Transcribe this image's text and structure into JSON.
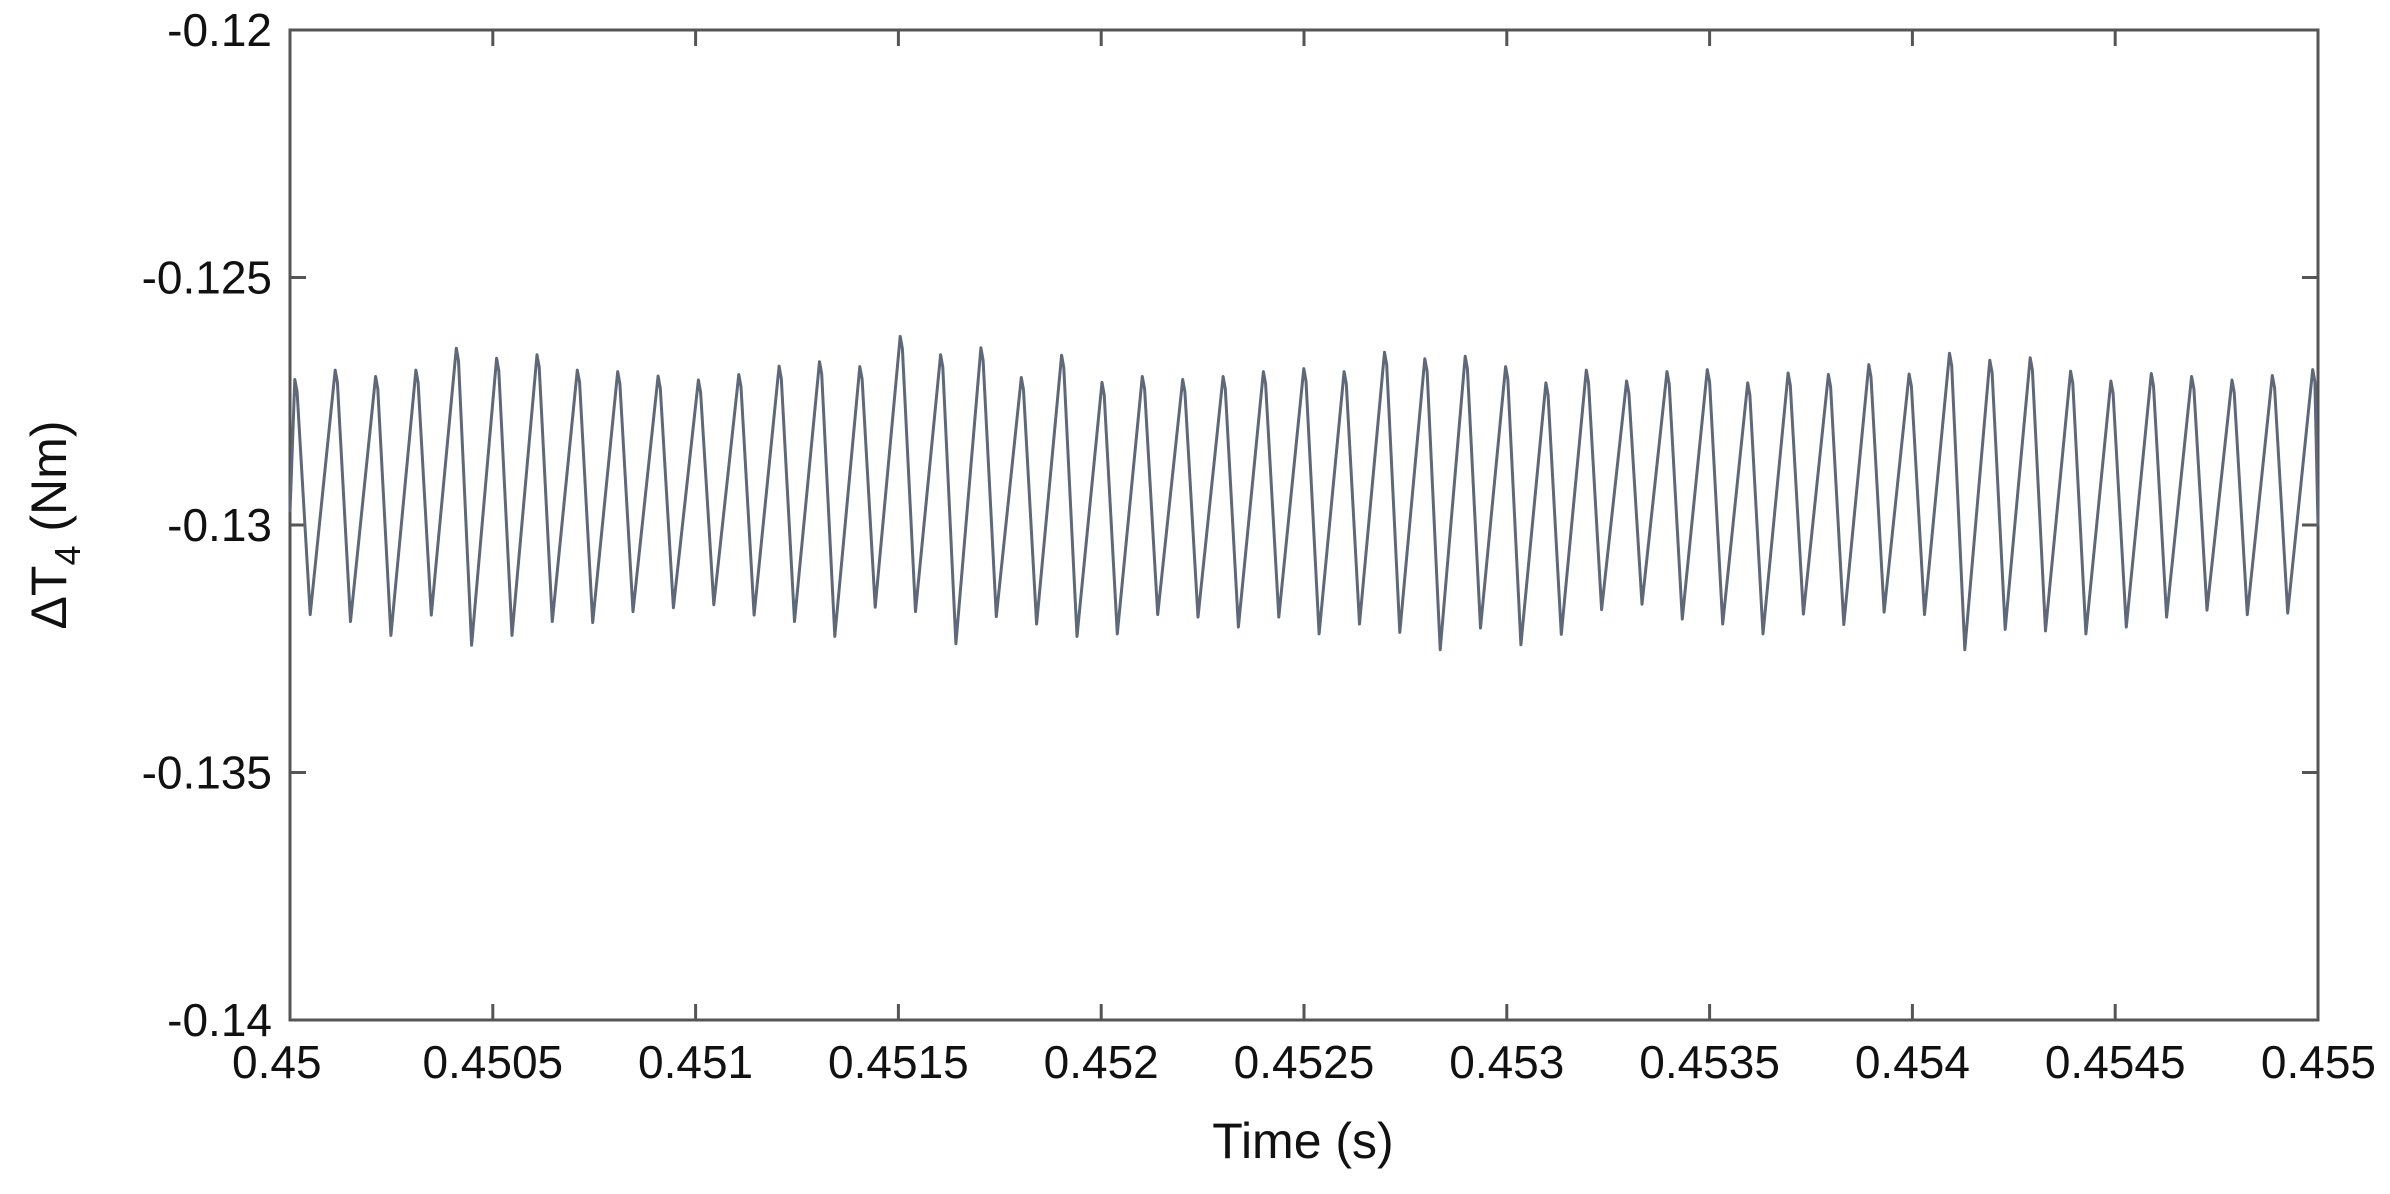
{
  "chart_data": {
    "type": "line",
    "xlabel": "Time (s)",
    "ylabel": {
      "prefix": "ΔT",
      "subscript": "4",
      "suffix": " (Nm)"
    },
    "xlim": [
      0.45,
      0.455
    ],
    "ylim": [
      -0.14,
      -0.12
    ],
    "x_ticks": [
      0.45,
      0.4505,
      0.451,
      0.4515,
      0.452,
      0.4525,
      0.453,
      0.4535,
      0.454,
      0.4545,
      0.455
    ],
    "x_tick_labels": [
      "0.45",
      "0.4505",
      "0.451",
      "0.4515",
      "0.452",
      "0.4525",
      "0.453",
      "0.4535",
      "0.454",
      "0.4545",
      "0.455"
    ],
    "y_ticks": [
      -0.14,
      -0.135,
      -0.13,
      -0.125,
      -0.12
    ],
    "y_tick_labels": [
      "-0.14",
      "-0.135",
      "-0.13",
      "-0.125",
      "-0.12"
    ],
    "grid": false,
    "line_color": "#5f6878",
    "series": [
      {
        "x_start": 0.45,
        "x_end": 0.455,
        "period": 9.95e-05,
        "peaks": [
          -0.12706,
          -0.12687,
          -0.127,
          -0.12687,
          -0.12643,
          -0.12663,
          -0.12656,
          -0.12687,
          -0.1269,
          -0.12699,
          -0.12707,
          -0.12696,
          -0.12679,
          -0.1267,
          -0.1268,
          -0.12619,
          -0.12656,
          -0.12642,
          -0.12702,
          -0.12657,
          -0.12712,
          -0.127,
          -0.12706,
          -0.127,
          -0.1269,
          -0.12684,
          -0.1269,
          -0.12651,
          -0.12664,
          -0.12659,
          -0.1268,
          -0.12713,
          -0.12687,
          -0.12709,
          -0.1269,
          -0.12686,
          -0.12713,
          -0.12693,
          -0.12696,
          -0.12676,
          -0.12695,
          -0.12653,
          -0.12667,
          -0.12662,
          -0.12689,
          -0.12709,
          -0.12694,
          -0.127,
          -0.12707,
          -0.12698,
          -0.12686,
          -0.12675,
          -0.12682,
          -0.12654,
          -0.12683,
          -0.1264,
          -0.12674,
          -0.12691,
          -0.12677,
          -0.12702
        ],
        "troughs": [
          -0.13181,
          -0.13195,
          -0.13223,
          -0.13182,
          -0.13243,
          -0.13223,
          -0.13195,
          -0.13197,
          -0.13175,
          -0.13167,
          -0.13161,
          -0.13182,
          -0.13195,
          -0.13225,
          -0.13166,
          -0.13175,
          -0.1324,
          -0.13185,
          -0.132,
          -0.13225,
          -0.1322,
          -0.13181,
          -0.13186,
          -0.13206,
          -0.13186,
          -0.1322,
          -0.132,
          -0.13217,
          -0.13252,
          -0.13208,
          -0.13242,
          -0.13221,
          -0.13171,
          -0.1316,
          -0.1319,
          -0.132,
          -0.1322,
          -0.1318,
          -0.13201,
          -0.13176,
          -0.13181,
          -0.13252,
          -0.13211,
          -0.13214,
          -0.1322,
          -0.13206,
          -0.13186,
          -0.13172,
          -0.13181,
          -0.13178,
          -0.13186,
          -0.13181,
          -0.1321,
          -0.13201,
          -0.13236,
          -0.13238,
          -0.13211,
          -0.13197,
          -0.1318,
          -0.13201
        ]
      }
    ]
  }
}
